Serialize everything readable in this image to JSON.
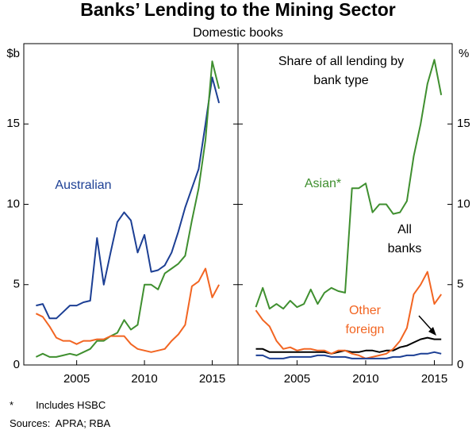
{
  "title": "Banks’ Lending to the Mining Sector",
  "subtitle": "Domestic books",
  "footnote": {
    "marker": "*",
    "text": "Includes HSBC"
  },
  "sources": "Sources:  APRA; RBA",
  "chart_data": [
    {
      "type": "line",
      "y_label": "$b",
      "x": [
        2002,
        2002.5,
        2003,
        2003.5,
        2004,
        2004.5,
        2005,
        2005.5,
        2006,
        2006.5,
        2007,
        2007.5,
        2008,
        2008.5,
        2009,
        2009.5,
        2010,
        2010.5,
        2011,
        2011.5,
        2012,
        2012.5,
        2013,
        2013.5,
        2014,
        2014.5,
        2015,
        2015.5
      ],
      "xlim": [
        2001.1,
        2016.9
      ],
      "xticks": [
        2005,
        2010,
        2015
      ],
      "ylim": [
        0,
        20
      ],
      "yticks": [
        0,
        5,
        10,
        15
      ],
      "series": [
        {
          "name": "Australian",
          "color": "#1c3f94",
          "values": [
            3.7,
            3.8,
            2.9,
            2.9,
            3.3,
            3.7,
            3.7,
            3.9,
            4.0,
            7.9,
            5.0,
            7.0,
            8.9,
            9.5,
            9.0,
            7.0,
            8.1,
            5.8,
            5.9,
            6.2,
            7.0,
            8.3,
            9.8,
            11.0,
            12.2,
            15.0,
            17.9,
            16.3
          ]
        },
        {
          "color": "#3f8f2f",
          "values": [
            0.5,
            0.7,
            0.5,
            0.5,
            0.6,
            0.7,
            0.6,
            0.8,
            1.0,
            1.5,
            1.5,
            1.8,
            2.0,
            2.8,
            2.2,
            2.5,
            5.0,
            5.0,
            4.7,
            5.7,
            6.0,
            6.3,
            6.8,
            9.0,
            11.0,
            14.0,
            18.9,
            17.2
          ]
        },
        {
          "color": "#f26522",
          "values": [
            3.2,
            3.0,
            2.4,
            1.7,
            1.5,
            1.5,
            1.3,
            1.5,
            1.5,
            1.6,
            1.6,
            1.8,
            1.8,
            1.8,
            1.3,
            1.0,
            0.9,
            0.8,
            0.9,
            1.0,
            1.5,
            1.9,
            2.5,
            4.9,
            5.2,
            6.0,
            4.2,
            5.0
          ]
        }
      ]
    },
    {
      "type": "line",
      "y_label": "%",
      "annotation": "Share of all lending by bank type",
      "x": [
        2002,
        2002.5,
        2003,
        2003.5,
        2004,
        2004.5,
        2005,
        2005.5,
        2006,
        2006.5,
        2007,
        2007.5,
        2008,
        2008.5,
        2009,
        2009.5,
        2010,
        2010.5,
        2011,
        2011.5,
        2012,
        2012.5,
        2013,
        2013.5,
        2014,
        2014.5,
        2015,
        2015.5
      ],
      "xlim": [
        2000.7,
        2016.3
      ],
      "xticks": [
        2005,
        2010,
        2015
      ],
      "ylim": [
        0,
        20
      ],
      "yticks": [
        0,
        5,
        10,
        15
      ],
      "series": [
        {
          "name": "Asian*",
          "color": "#3f8f2f",
          "values": [
            3.6,
            4.8,
            3.5,
            3.8,
            3.5,
            4.0,
            3.6,
            3.8,
            4.7,
            3.8,
            4.5,
            4.8,
            4.6,
            4.5,
            11.0,
            11.0,
            11.3,
            9.5,
            10.0,
            10.0,
            9.4,
            9.5,
            10.2,
            13.0,
            15.0,
            17.5,
            19.0,
            16.8
          ]
        },
        {
          "name": "All banks",
          "color": "#000000",
          "values": [
            1.0,
            1.0,
            0.8,
            0.8,
            0.8,
            0.8,
            0.8,
            0.8,
            0.8,
            0.8,
            0.8,
            0.7,
            0.8,
            0.9,
            0.8,
            0.8,
            0.9,
            0.9,
            0.8,
            0.9,
            0.9,
            1.1,
            1.2,
            1.4,
            1.6,
            1.7,
            1.6,
            1.6
          ]
        },
        {
          "name": "Other foreign",
          "color": "#f26522",
          "values": [
            3.4,
            2.8,
            2.4,
            1.5,
            1.0,
            1.1,
            0.9,
            1.0,
            1.0,
            0.9,
            0.9,
            0.7,
            0.9,
            0.9,
            0.7,
            0.6,
            0.4,
            0.5,
            0.6,
            0.7,
            1.0,
            1.5,
            2.3,
            4.4,
            5.0,
            5.8,
            3.8,
            4.4
          ]
        },
        {
          "color": "#1c3f94",
          "values": [
            0.6,
            0.6,
            0.4,
            0.4,
            0.4,
            0.5,
            0.5,
            0.5,
            0.5,
            0.6,
            0.6,
            0.5,
            0.5,
            0.5,
            0.4,
            0.4,
            0.4,
            0.4,
            0.4,
            0.4,
            0.5,
            0.5,
            0.6,
            0.6,
            0.7,
            0.7,
            0.8,
            0.7
          ]
        }
      ]
    }
  ]
}
